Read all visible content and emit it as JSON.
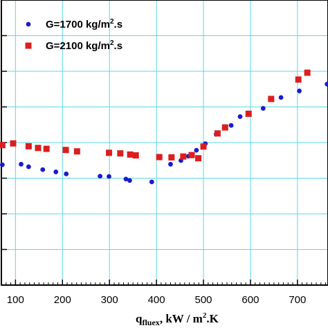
{
  "chart_data": {
    "type": "scatter",
    "xlabel_parts": {
      "main": "q",
      "subscript": "fluex",
      "unit_prefix": ", kW / m",
      "unit_sup": "2",
      "unit_suffix": ".K"
    },
    "ylabel": "",
    "xlim": [
      70,
      765
    ],
    "ylim": [
      0,
      1
    ],
    "x_ticks": [
      100,
      200,
      300,
      400,
      500,
      600,
      700
    ],
    "x_tick_labels": [
      "100",
      "200",
      "300",
      "400",
      "500",
      "600",
      "700"
    ],
    "grid": true,
    "grid_color": "#5bd7e6",
    "legend_position": "top-left",
    "series": [
      {
        "legend_parts": {
          "prefix": "G=1700  kg/m",
          "sup": "2",
          "suffix": ".s"
        },
        "marker": "circle",
        "color": "#1b1bd0",
        "points": [
          [
            72,
            0.422
          ],
          [
            112,
            0.424
          ],
          [
            128,
            0.415
          ],
          [
            158,
            0.405
          ],
          [
            186,
            0.397
          ],
          [
            208,
            0.39
          ],
          [
            280,
            0.382
          ],
          [
            299,
            0.381
          ],
          [
            335,
            0.372
          ],
          [
            343,
            0.367
          ],
          [
            390,
            0.362
          ],
          [
            430,
            0.424
          ],
          [
            452,
            0.437
          ],
          [
            468,
            0.452
          ],
          [
            485,
            0.473
          ],
          [
            504,
            0.496
          ],
          [
            527,
            0.529
          ],
          [
            559,
            0.56
          ],
          [
            578,
            0.591
          ],
          [
            627,
            0.62
          ],
          [
            665,
            0.658
          ],
          [
            704,
            0.681
          ],
          [
            763,
            0.705
          ]
        ]
      },
      {
        "legend_parts": {
          "prefix": "G=2100  kg/m",
          "sup": "2",
          "suffix": ".s"
        },
        "marker": "square",
        "color": "#dc1e1e",
        "points": [
          [
            72,
            0.491
          ],
          [
            95,
            0.497
          ],
          [
            128,
            0.487
          ],
          [
            148,
            0.481
          ],
          [
            166,
            0.478
          ],
          [
            207,
            0.474
          ],
          [
            231,
            0.469
          ],
          [
            299,
            0.464
          ],
          [
            323,
            0.462
          ],
          [
            344,
            0.458
          ],
          [
            356,
            0.455
          ],
          [
            406,
            0.449
          ],
          [
            432,
            0.448
          ],
          [
            457,
            0.451
          ],
          [
            475,
            0.456
          ],
          [
            489,
            0.445
          ],
          [
            500,
            0.486
          ],
          [
            530,
            0.532
          ],
          [
            546,
            0.553
          ],
          [
            596,
            0.601
          ],
          [
            644,
            0.653
          ],
          [
            702,
            0.721
          ],
          [
            721,
            0.745
          ]
        ]
      }
    ]
  }
}
